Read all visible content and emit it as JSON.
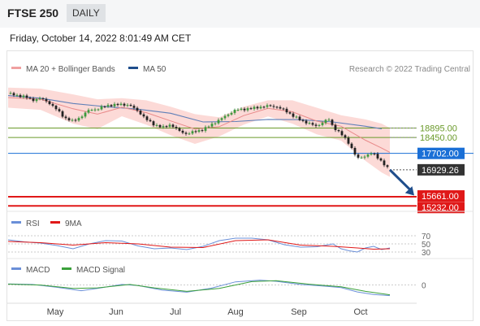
{
  "header": {
    "instrument": "FTSE 250",
    "timeframe": "DAILY"
  },
  "timestamp": "Friday, October 14, 2022 8:01:49 AM CET",
  "chart_data": [
    {
      "type": "line",
      "legend": [
        {
          "label": "MA 20 + Bollinger Bands",
          "color": "#f0a0a0"
        },
        {
          "label": "MA 50",
          "color": "#1f4e8c"
        }
      ],
      "credit": "Research © 2022 Trading Central",
      "x_months": [
        "May",
        "Jun",
        "Jul",
        "Aug",
        "Sep",
        "Oct"
      ],
      "ylim": [
        15050,
        21400
      ],
      "close_points": [
        [
          0,
          20520
        ],
        [
          10,
          20430
        ],
        [
          20,
          20380
        ],
        [
          30,
          20200
        ],
        [
          40,
          20300
        ],
        [
          50,
          20090
        ],
        [
          60,
          19760
        ],
        [
          70,
          19360
        ],
        [
          80,
          19210
        ],
        [
          90,
          19430
        ],
        [
          100,
          19760
        ],
        [
          110,
          19780
        ],
        [
          120,
          19950
        ],
        [
          130,
          19980
        ],
        [
          140,
          20010
        ],
        [
          150,
          19960
        ],
        [
          160,
          19690
        ],
        [
          170,
          19300
        ],
        [
          180,
          19050
        ],
        [
          190,
          18920
        ],
        [
          200,
          19060
        ],
        [
          210,
          18770
        ],
        [
          220,
          18610
        ],
        [
          230,
          18740
        ],
        [
          240,
          18820
        ],
        [
          250,
          19050
        ],
        [
          260,
          19280
        ],
        [
          270,
          19520
        ],
        [
          280,
          19750
        ],
        [
          290,
          19780
        ],
        [
          300,
          19820
        ],
        [
          310,
          19880
        ],
        [
          320,
          19940
        ],
        [
          330,
          19900
        ],
        [
          340,
          19740
        ],
        [
          350,
          19490
        ],
        [
          360,
          19260
        ],
        [
          370,
          19120
        ],
        [
          380,
          18970
        ],
        [
          390,
          19240
        ],
        [
          395,
          19290
        ],
        [
          400,
          18950
        ],
        [
          410,
          18620
        ],
        [
          420,
          18160
        ],
        [
          430,
          17450
        ],
        [
          440,
          17580
        ],
        [
          445,
          17700
        ],
        [
          450,
          17680
        ],
        [
          460,
          17320
        ],
        [
          466,
          17040
        ],
        [
          470,
          16929
        ]
      ],
      "ma50_points": [
        [
          0,
          20420
        ],
        [
          40,
          20300
        ],
        [
          80,
          20050
        ],
        [
          120,
          19900
        ],
        [
          160,
          19780
        ],
        [
          200,
          19590
        ],
        [
          240,
          19180
        ],
        [
          280,
          19200
        ],
        [
          320,
          19300
        ],
        [
          360,
          19290
        ],
        [
          400,
          19180
        ],
        [
          440,
          18980
        ],
        [
          460,
          18860
        ]
      ],
      "ma20_points": [
        [
          0,
          20330
        ],
        [
          40,
          20250
        ],
        [
          80,
          19800
        ],
        [
          110,
          19550
        ],
        [
          140,
          19870
        ],
        [
          170,
          19620
        ],
        [
          200,
          19230
        ],
        [
          230,
          18850
        ],
        [
          260,
          18960
        ],
        [
          290,
          19480
        ],
        [
          320,
          19820
        ],
        [
          350,
          19660
        ],
        [
          380,
          19220
        ],
        [
          410,
          18980
        ],
        [
          440,
          18320
        ],
        [
          460,
          17950
        ],
        [
          470,
          17750
        ]
      ],
      "bb_upper_points": [
        [
          0,
          20800
        ],
        [
          40,
          20750
        ],
        [
          80,
          20480
        ],
        [
          110,
          20250
        ],
        [
          140,
          20300
        ],
        [
          170,
          20200
        ],
        [
          200,
          19900
        ],
        [
          230,
          19550
        ],
        [
          260,
          19400
        ],
        [
          290,
          19900
        ],
        [
          320,
          20200
        ],
        [
          350,
          20200
        ],
        [
          380,
          19850
        ],
        [
          410,
          19500
        ],
        [
          440,
          19300
        ],
        [
          460,
          19100
        ],
        [
          470,
          18900
        ]
      ],
      "bb_lower_points": [
        [
          0,
          19850
        ],
        [
          40,
          19750
        ],
        [
          80,
          19100
        ],
        [
          110,
          18850
        ],
        [
          140,
          19450
        ],
        [
          170,
          19050
        ],
        [
          200,
          18560
        ],
        [
          230,
          18150
        ],
        [
          260,
          18500
        ],
        [
          290,
          19050
        ],
        [
          320,
          19440
        ],
        [
          350,
          19100
        ],
        [
          380,
          18600
        ],
        [
          410,
          18300
        ],
        [
          440,
          17350
        ],
        [
          460,
          16800
        ],
        [
          470,
          16600
        ]
      ],
      "forecast_points": [
        [
          470,
          16929
        ],
        [
          500,
          15720
        ]
      ],
      "levels": [
        {
          "value": "18895.00",
          "color": "#6a9a2a"
        },
        {
          "value": "18450.00",
          "color": "#6a9a2a"
        },
        {
          "value": "17702.00",
          "color": "#1a6fd6"
        },
        {
          "value": "16929.26",
          "color": "#333333"
        },
        {
          "value": "15661.00",
          "color": "#e01818"
        },
        {
          "value": "15232.00",
          "color": "#e01818"
        }
      ]
    },
    {
      "type": "line",
      "legend": [
        {
          "label": "RSI",
          "color": "#6a8fd8"
        },
        {
          "label": "9MA",
          "color": "#e01818"
        }
      ],
      "y_ticks": [
        "70",
        "50",
        "30"
      ],
      "ylim": [
        22,
        78
      ],
      "rsi_points": [
        [
          0,
          60
        ],
        [
          20,
          55
        ],
        [
          40,
          52
        ],
        [
          60,
          46
        ],
        [
          80,
          38
        ],
        [
          100,
          50
        ],
        [
          120,
          58
        ],
        [
          140,
          57
        ],
        [
          160,
          45
        ],
        [
          180,
          38
        ],
        [
          200,
          40
        ],
        [
          220,
          36
        ],
        [
          240,
          44
        ],
        [
          260,
          58
        ],
        [
          280,
          64
        ],
        [
          300,
          64
        ],
        [
          320,
          60
        ],
        [
          340,
          48
        ],
        [
          360,
          42
        ],
        [
          380,
          43
        ],
        [
          400,
          50
        ],
        [
          410,
          38
        ],
        [
          420,
          33
        ],
        [
          430,
          30
        ],
        [
          440,
          40
        ],
        [
          450,
          44
        ],
        [
          460,
          36
        ],
        [
          470,
          40
        ]
      ],
      "ma9_points": [
        [
          0,
          56
        ],
        [
          40,
          53
        ],
        [
          80,
          47
        ],
        [
          120,
          53
        ],
        [
          160,
          50
        ],
        [
          200,
          42
        ],
        [
          240,
          41
        ],
        [
          280,
          58
        ],
        [
          320,
          60
        ],
        [
          360,
          47
        ],
        [
          400,
          44
        ],
        [
          430,
          40
        ],
        [
          450,
          37
        ],
        [
          470,
          38
        ]
      ]
    },
    {
      "type": "line",
      "legend": [
        {
          "label": "MACD",
          "color": "#6a8fd8"
        },
        {
          "label": "MACD Signal",
          "color": "#3aa03a"
        }
      ],
      "y_ticks": [
        "0"
      ],
      "ylim": [
        -550,
        300
      ],
      "macd_points": [
        [
          0,
          40
        ],
        [
          30,
          20
        ],
        [
          60,
          -80
        ],
        [
          90,
          -200
        ],
        [
          110,
          -120
        ],
        [
          140,
          20
        ],
        [
          160,
          -20
        ],
        [
          190,
          -180
        ],
        [
          220,
          -250
        ],
        [
          250,
          -110
        ],
        [
          280,
          110
        ],
        [
          310,
          170
        ],
        [
          330,
          130
        ],
        [
          360,
          20
        ],
        [
          390,
          -40
        ],
        [
          410,
          -90
        ],
        [
          430,
          -240
        ],
        [
          450,
          -330
        ],
        [
          470,
          -370
        ]
      ],
      "signal_points": [
        [
          0,
          30
        ],
        [
          40,
          0
        ],
        [
          80,
          -120
        ],
        [
          110,
          -100
        ],
        [
          150,
          20
        ],
        [
          180,
          -100
        ],
        [
          220,
          -220
        ],
        [
          260,
          -120
        ],
        [
          300,
          120
        ],
        [
          330,
          150
        ],
        [
          370,
          30
        ],
        [
          410,
          -60
        ],
        [
          440,
          -220
        ],
        [
          470,
          -340
        ]
      ]
    }
  ]
}
